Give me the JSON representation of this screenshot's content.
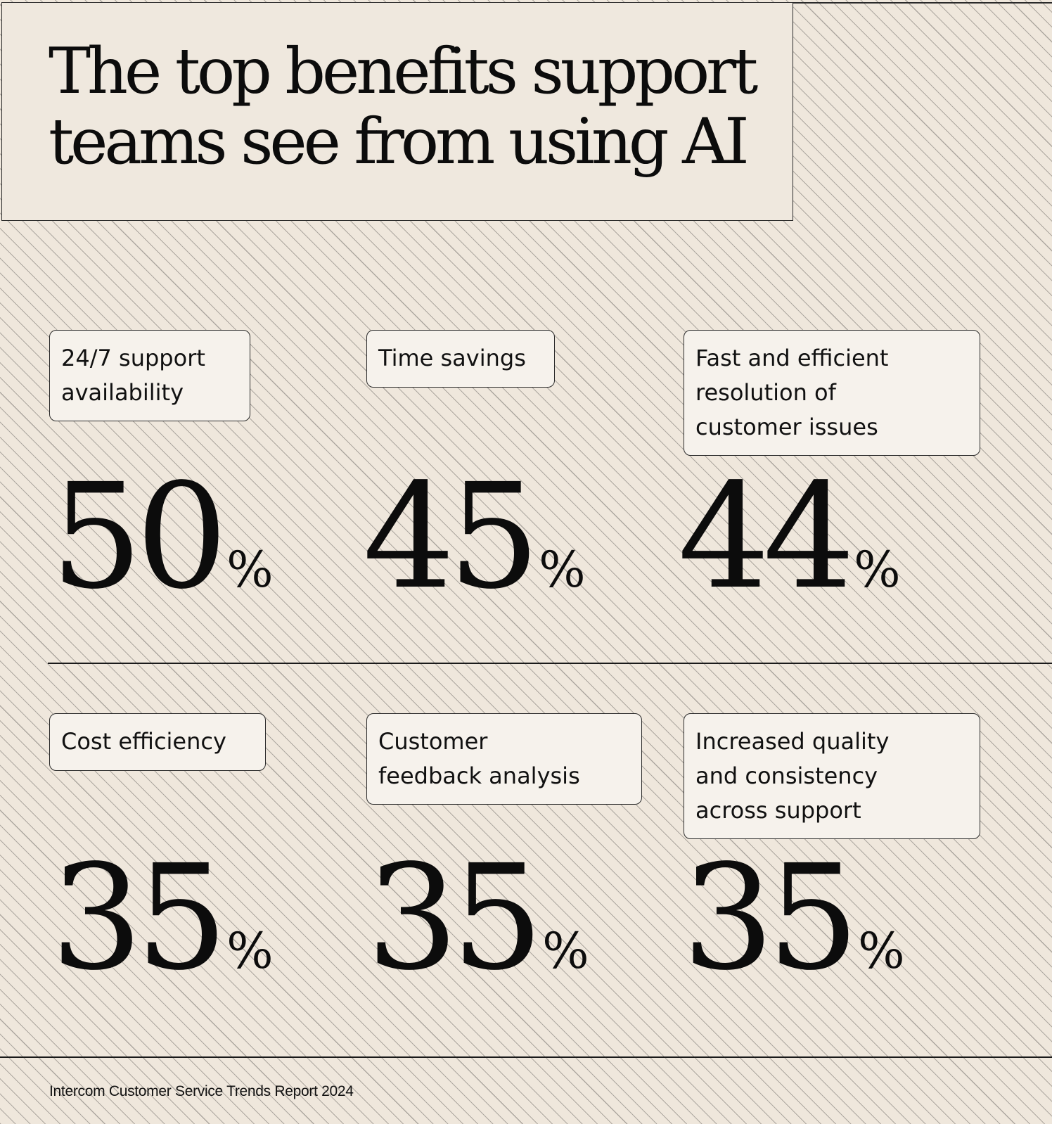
{
  "title": {
    "line1": "The top benefits support",
    "line2": "teams see from using AI"
  },
  "chart_data": {
    "type": "table",
    "title": "The top benefits support teams see from using AI",
    "unit": "%",
    "categories": [
      "24/7 support availability",
      "Time savings",
      "Fast and efficient resolution of customer issues",
      "Cost efficiency",
      "Customer feedback analysis",
      "Increased quality and consistency across support"
    ],
    "values": [
      50,
      45,
      44,
      35,
      35,
      35
    ]
  },
  "cards": [
    {
      "label_lines": [
        "24/7 support",
        "availability"
      ],
      "value": "50",
      "unit": "%"
    },
    {
      "label_lines": [
        "Time savings"
      ],
      "value": "45",
      "unit": "%"
    },
    {
      "label_lines": [
        "Fast and efficient",
        "resolution of",
        "customer issues"
      ],
      "value": "44",
      "unit": "%"
    },
    {
      "label_lines": [
        "Cost efficiency"
      ],
      "value": "35",
      "unit": "%"
    },
    {
      "label_lines": [
        "Customer",
        "feedback analysis"
      ],
      "value": "35",
      "unit": "%"
    },
    {
      "label_lines": [
        "Increased quality",
        "and consistency",
        "across support"
      ],
      "value": "35",
      "unit": "%"
    }
  ],
  "footer": {
    "source": "Intercom Customer Service Trends Report 2024"
  },
  "colors": {
    "background": "#efe7dc",
    "ink": "#111111",
    "card": "#f6f2ec"
  }
}
